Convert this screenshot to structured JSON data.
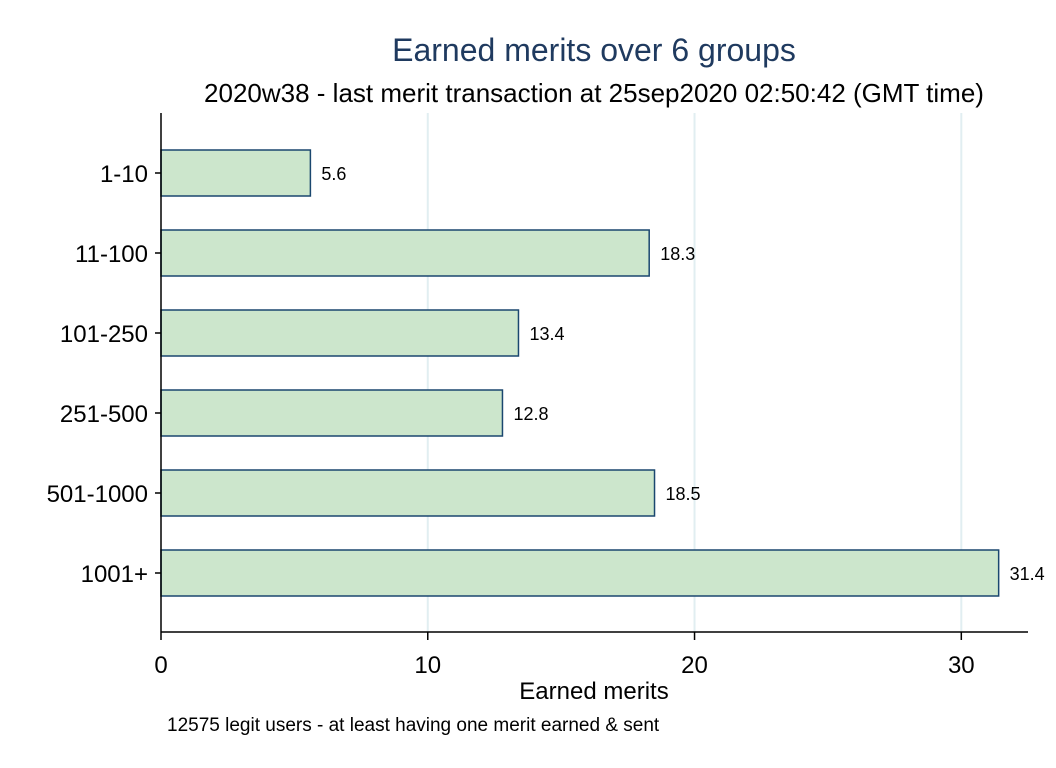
{
  "chart_data": {
    "type": "bar",
    "orientation": "horizontal",
    "title": "Earned merits over 6 groups",
    "subtitle": "2020w38 - last merit transaction at 25sep2020 02:50:42 (GMT time)",
    "categories": [
      "1-10",
      "11-100",
      "101-250",
      "251-500",
      "501-1000",
      "1001+"
    ],
    "values": [
      5.6,
      18.3,
      13.4,
      12.8,
      18.5,
      31.4
    ],
    "value_labels": [
      "5.6",
      "18.3",
      "13.4",
      "12.8",
      "18.5",
      "31.4"
    ],
    "xlabel": "Earned merits",
    "ylabel": "",
    "xlim": [
      0,
      32.5
    ],
    "xticks": [
      0,
      10,
      20,
      30
    ],
    "xtick_labels": [
      "0",
      "10",
      "20",
      "30"
    ],
    "grid": true,
    "note": "12575 legit users - at least having one merit earned & sent",
    "colors": {
      "bar_fill": "#cce6cc",
      "bar_stroke": "#1a476f",
      "grid": "#e1eef1",
      "title": "#1f3a5f",
      "axis": "#000000"
    }
  }
}
